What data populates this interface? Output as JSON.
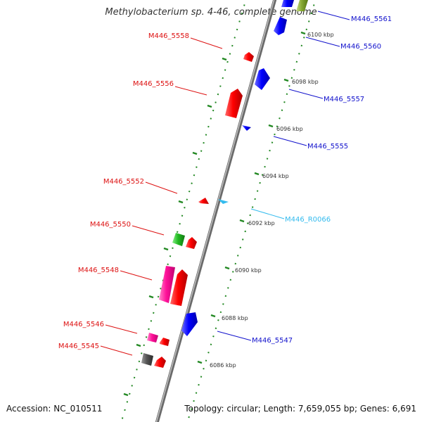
{
  "title": "Methylobacterium sp. 4-46, complete genome",
  "footer": {
    "accession": "Accession: NC_010511",
    "topology": "Topology: circular; Length: 7,659,055 bp; Genes: 6,691"
  },
  "colors": {
    "forward_label": "#dd1111",
    "reverse_label": "#1111cc",
    "rna_label": "#33bbee",
    "backbone": "#8a8a8a",
    "track_dots": "#228822"
  },
  "scale_labels": [
    "6100 kbp",
    "6098 kbp",
    "6096 kbp",
    "6094 kbp",
    "6092 kbp",
    "6090 kbp",
    "6088 kbp",
    "6086 kbp"
  ],
  "left_labels": [
    "M446_5558",
    "M446_5556",
    "M446_5552",
    "M446_5550",
    "M446_5548",
    "M446_5546",
    "M446_5545"
  ],
  "right_labels": [
    "M446_5561",
    "M446_5560",
    "M446_5557",
    "M446_5555",
    "M446_R0066",
    "M446_5547"
  ]
}
